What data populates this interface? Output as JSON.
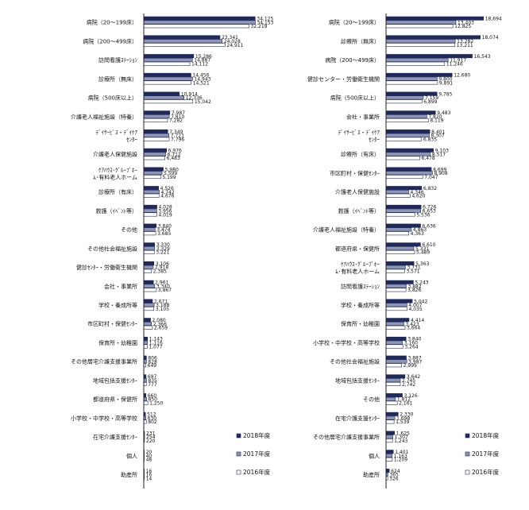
{
  "colors": {
    "2018年度": "#1f2a5c",
    "2017年度": "#8f96b4",
    "2016年度": "#ffffff",
    "stroke": "#1f2a5c",
    "axis": "#222222"
  },
  "legend": [
    "2018年度",
    "2017年度",
    "2016年度"
  ],
  "chart_data": [
    {
      "type": "bar",
      "orientation": "horizontal",
      "title": "",
      "xlabel": "",
      "ylabel": "",
      "xlim": [
        0,
        36000
      ],
      "grid": false,
      "legend_position": "bottom-right",
      "categories": [
        "病院（20～199床）",
        "病院（200～499床）",
        "訪問看護ｽﾃｰｼｮﾝ",
        "診療所（無床）",
        "病院（500床以上）",
        "介護老人福祉施設（特養）",
        "ﾃﾞｲｻｰﾋﾞｽ・ﾃﾞｲｹｱｾﾝﾀｰ",
        "介護老人保健施設",
        "ｹｱﾊｳｽ･ｸﾞﾙｰﾌﾟﾎｰﾑ･有料老人ホーム",
        "診療所（有床）",
        "救護（ｲﾍﾞﾝﾄ等）",
        "その他",
        "その他社会福祉施設",
        "健診ｾﾝﾀｰ・労働衛生機関",
        "会社・事業所",
        "学校・養成所等",
        "市区町村・保健ｾﾝﾀｰ",
        "保育所・幼稚園",
        "その他居宅介護支援事業所",
        "地域包括支援ｾﾝﾀｰ",
        "都道府県・保健所",
        "小学校・中学校・高等学校",
        "在宅介護支援ｾﾝﾀｰ",
        "個人",
        "助産所"
      ],
      "series": [
        {
          "name": "2018年度",
          "values": [
            34125,
            23341,
            15286,
            14456,
            10914,
            7987,
            7349,
            6976,
            5980,
            4526,
            4028,
            3840,
            3330,
            3106,
            2961,
            2671,
            2080,
            1143,
            806,
            697,
            660,
            512,
            231,
            20,
            16
          ]
        },
        {
          "name": "2017年度",
          "values": [
            34153,
            24028,
            14887,
            14943,
            12336,
            7810,
            7721,
            6712,
            5599,
            4742,
            3956,
            3474,
            3329,
            2918,
            3340,
            3188,
            2366,
            1116,
            828,
            835,
            850,
            630,
            254,
            40,
            16
          ]
        },
        {
          "name": "2016年度",
          "values": [
            32219,
            24911,
            14112,
            14521,
            15042,
            7282,
            7796,
            6483,
            5199,
            4676,
            4019,
            3685,
            3221,
            2385,
            3867,
            3105,
            2659,
            1077,
            649,
            777,
            1250,
            802,
            220,
            48,
            14
          ]
        }
      ]
    },
    {
      "type": "bar",
      "orientation": "horizontal",
      "title": "",
      "xlabel": "",
      "ylabel": "",
      "xlim": [
        0,
        19500
      ],
      "grid": false,
      "legend_position": "bottom-right",
      "categories": [
        "病院（20～199床）",
        "診療所（無床）",
        "病院（200～499床）",
        "健診センター・労働衛生機関",
        "病院（500床以上）",
        "会社・事業所",
        "ﾃﾞｲｻｰﾋﾞｽ・ﾃﾞｲｹｱｾﾝﾀｰ",
        "診療所（有床）",
        "市区町村・保健ｾﾝﾀｰ",
        "介護老人保健施設",
        "救護（ｲﾍﾞﾝﾄ等）",
        "介護老人福祉施設（特養）",
        "都道府県・保健所",
        "ｹｱﾊｳｽ･ｸﾞﾙｰﾌﾟﾎｰﾑ･有料老人ホーム",
        "訪問看護ｽﾃｰｼｮﾝ",
        "学校・養成所等",
        "保育所・幼稚園",
        "小学校・中学校・高等学校",
        "その他社会福祉施設",
        "地域包括支援ｾﾝﾀｰ",
        "その他",
        "在宅介護支援ｾﾝﾀｰ",
        "その他居宅介護支援事業所",
        "個人",
        "助産所"
      ],
      "series": [
        {
          "name": "2018年度",
          "values": [
            18694,
            18074,
            16543,
            12680,
            9785,
            9483,
            8401,
            9103,
            8699,
            6832,
            6726,
            6636,
            6610,
            5363,
            5243,
            5042,
            4414,
            3840,
            3887,
            3642,
            3126,
            2330,
            1625,
            1401,
            624
          ]
        },
        {
          "name": "2017年度",
          "values": [
            13403,
            13282,
            11917,
            9800,
            7159,
            7820,
            8307,
            8517,
            8908,
            4346,
            6653,
            4863,
            5331,
            3731,
            3882,
            4007,
            3423,
            3160,
            3987,
            2745,
            1812,
            1698,
            1307,
            1163,
            365
          ]
        },
        {
          "name": "2016年度",
          "values": [
            12825,
            13211,
            11246,
            9891,
            6899,
            8119,
            6835,
            6478,
            7047,
            4620,
            5536,
            4363,
            5489,
            3571,
            3826,
            4035,
            3664,
            3264,
            2999,
            2742,
            2161,
            1539,
            1243,
            1209,
            326
          ]
        }
      ]
    }
  ]
}
